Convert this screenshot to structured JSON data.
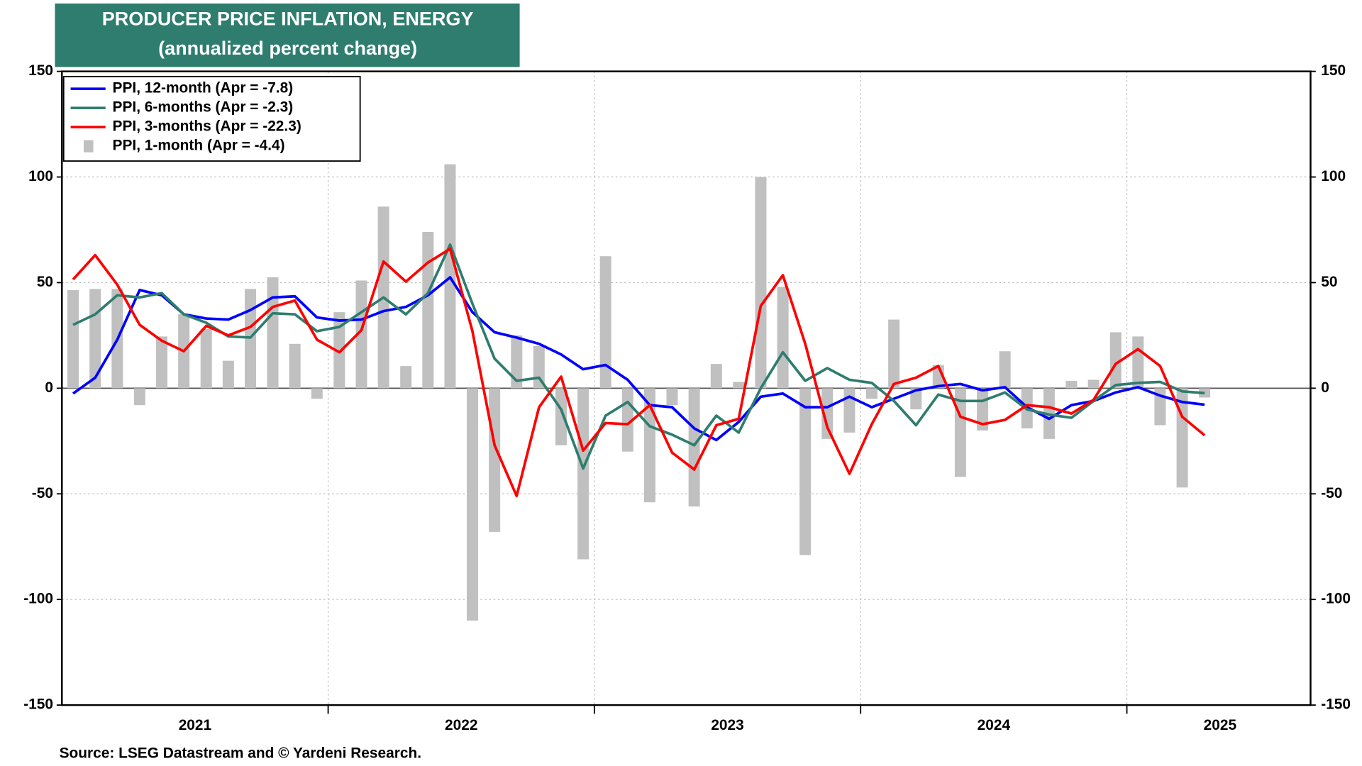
{
  "chart_data": {
    "type": "combo",
    "title": "PRODUCER PRICE INFLATION, ENERGY",
    "subtitle": "(annualized percent change)",
    "source": "Source: LSEG Datastream and © Yardeni Research.",
    "x": [
      2021.042,
      2021.125,
      2021.208,
      2021.292,
      2021.375,
      2021.458,
      2021.542,
      2021.625,
      2021.708,
      2021.792,
      2021.875,
      2021.958,
      2022.042,
      2022.125,
      2022.208,
      2022.292,
      2022.375,
      2022.458,
      2022.542,
      2022.625,
      2022.708,
      2022.792,
      2022.875,
      2022.958,
      2023.042,
      2023.125,
      2023.208,
      2023.292,
      2023.375,
      2023.458,
      2023.542,
      2023.625,
      2023.708,
      2023.792,
      2023.875,
      2023.958,
      2024.042,
      2024.125,
      2024.208,
      2024.292,
      2024.375,
      2024.458,
      2024.542,
      2024.625,
      2024.708,
      2024.792,
      2024.875,
      2024.958,
      2025.042,
      2025.125,
      2025.208,
      2025.292
    ],
    "xlim": [
      2021,
      2025.69
    ],
    "xticks": [
      2022,
      2023,
      2024,
      2025
    ],
    "xlabels": [
      {
        "value": 2021.5,
        "label": "2021"
      },
      {
        "value": 2022.5,
        "label": "2022"
      },
      {
        "value": 2023.5,
        "label": "2023"
      },
      {
        "value": 2024.5,
        "label": "2024"
      },
      {
        "value": 2025.35,
        "label": "2025"
      }
    ],
    "ylim": [
      -150,
      150
    ],
    "yticks": [
      -150,
      -100,
      -50,
      0,
      50,
      100,
      150
    ],
    "grid": true,
    "legend": "upper left",
    "series": [
      {
        "name": "PPI, 12-month (Apr = -7.8)",
        "type": "line",
        "color": "#0000ff",
        "values": [
          -2.5,
          5,
          23,
          46.5,
          44,
          35,
          33,
          32.5,
          37,
          43,
          43.5,
          33.5,
          32,
          32.5,
          36.5,
          38.5,
          44,
          52.5,
          36,
          26.5,
          24,
          21,
          16,
          9,
          11,
          4,
          -8,
          -9,
          -19,
          -24.5,
          -16,
          -4,
          -2.5,
          -9,
          -9,
          -4,
          -9,
          -5,
          -1,
          1,
          2,
          -1,
          0.5,
          -9,
          -14.5,
          -8,
          -6,
          -2,
          0.5,
          -3.5,
          -6.5,
          -7.8
        ]
      },
      {
        "name": "PPI, 6-months (Apr = -2.3)",
        "type": "line",
        "color": "#2e7d6e",
        "values": [
          30,
          35,
          44,
          43,
          45,
          35,
          31,
          24.5,
          24,
          35.5,
          35,
          27,
          29,
          36,
          43,
          35,
          45,
          68,
          40,
          14,
          3.5,
          5,
          -10,
          -38,
          -13,
          -6.5,
          -18,
          -22,
          -27,
          -13,
          -21,
          0,
          17,
          3.5,
          9.5,
          4,
          2.5,
          -6,
          -17.5,
          -3,
          -6,
          -6,
          -2,
          -10,
          -12.5,
          -14,
          -6,
          1.5,
          2.5,
          3,
          -1.5,
          -2.3
        ]
      },
      {
        "name": "PPI, 3-months (Apr = -22.3)",
        "type": "line",
        "color": "#ff0000",
        "values": [
          51.5,
          63,
          49,
          30,
          22.5,
          17.5,
          29.5,
          25,
          29,
          38.5,
          41.5,
          23,
          17,
          27.5,
          60,
          50.5,
          59.5,
          66,
          27,
          -27,
          -51,
          -9,
          5.5,
          -29.5,
          -16.5,
          -17,
          -8,
          -30.5,
          -38.5,
          -17.5,
          -14.5,
          39,
          53.5,
          21,
          -18.5,
          -40.5,
          -17,
          2,
          5,
          10.5,
          -13.5,
          -17,
          -15,
          -8,
          -9,
          -12,
          -5.5,
          11.5,
          18.5,
          10.5,
          -13.5,
          -22.3
        ]
      },
      {
        "name": "PPI, 1-month (Apr = -4.4)",
        "type": "bar",
        "color": "#c0c0c0",
        "values": [
          46.5,
          47,
          47,
          -8,
          24.5,
          35,
          28,
          13,
          47,
          52.5,
          21,
          -5,
          36,
          51,
          86,
          10.5,
          74,
          106,
          -110,
          -68,
          25,
          20,
          -27,
          -81,
          62.5,
          -30,
          -54,
          -8,
          -56,
          11.5,
          3,
          100,
          48,
          -79,
          -24,
          -21,
          -5,
          32.5,
          -10,
          11,
          -42,
          -20,
          17.5,
          -19,
          -24,
          3.5,
          4,
          26.5,
          24.5,
          -17.5,
          -47,
          -4.4
        ]
      }
    ]
  }
}
